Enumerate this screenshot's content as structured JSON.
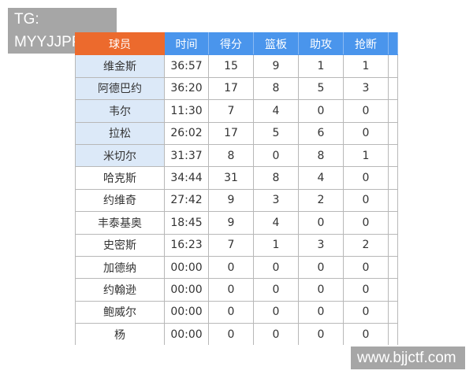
{
  "watermark_top": "TG: MYYJJPP",
  "watermark_bottom": "www.bjjctf.com",
  "colors": {
    "name_header": "#ec6a2d",
    "header": "#4a95ec",
    "highlight_cell": "#dce9f8"
  },
  "headers": [
    "球员",
    "时间",
    "得分",
    "篮板",
    "助攻",
    "抢断",
    ""
  ],
  "rows": [
    {
      "name": "维金斯",
      "time": "36:57",
      "pts": "15",
      "reb": "9",
      "ast": "1",
      "stl": "1",
      "hl": true
    },
    {
      "name": "阿德巴约",
      "time": "36:20",
      "pts": "17",
      "reb": "8",
      "ast": "5",
      "stl": "3",
      "hl": true
    },
    {
      "name": "韦尔",
      "time": "11:30",
      "pts": "7",
      "reb": "4",
      "ast": "0",
      "stl": "0",
      "hl": true
    },
    {
      "name": "拉松",
      "time": "26:02",
      "pts": "17",
      "reb": "5",
      "ast": "6",
      "stl": "0",
      "hl": true
    },
    {
      "name": "米切尔",
      "time": "31:37",
      "pts": "8",
      "reb": "0",
      "ast": "8",
      "stl": "1",
      "hl": true
    },
    {
      "name": "哈克斯",
      "time": "34:44",
      "pts": "31",
      "reb": "8",
      "ast": "4",
      "stl": "0",
      "hl": false
    },
    {
      "name": "约维奇",
      "time": "27:42",
      "pts": "9",
      "reb": "3",
      "ast": "2",
      "stl": "0",
      "hl": false
    },
    {
      "name": "丰泰基奥",
      "time": "18:45",
      "pts": "9",
      "reb": "4",
      "ast": "0",
      "stl": "0",
      "hl": false
    },
    {
      "name": "史密斯",
      "time": "16:23",
      "pts": "7",
      "reb": "1",
      "ast": "3",
      "stl": "2",
      "hl": false
    },
    {
      "name": "加德纳",
      "time": "00:00",
      "pts": "0",
      "reb": "0",
      "ast": "0",
      "stl": "0",
      "hl": false
    },
    {
      "name": "约翰逊",
      "time": "00:00",
      "pts": "0",
      "reb": "0",
      "ast": "0",
      "stl": "0",
      "hl": false
    },
    {
      "name": "鲍威尔",
      "time": "00:00",
      "pts": "0",
      "reb": "0",
      "ast": "0",
      "stl": "0",
      "hl": false
    },
    {
      "name": "杨",
      "time": "00:00",
      "pts": "0",
      "reb": "0",
      "ast": "0",
      "stl": "0",
      "hl": false
    }
  ]
}
